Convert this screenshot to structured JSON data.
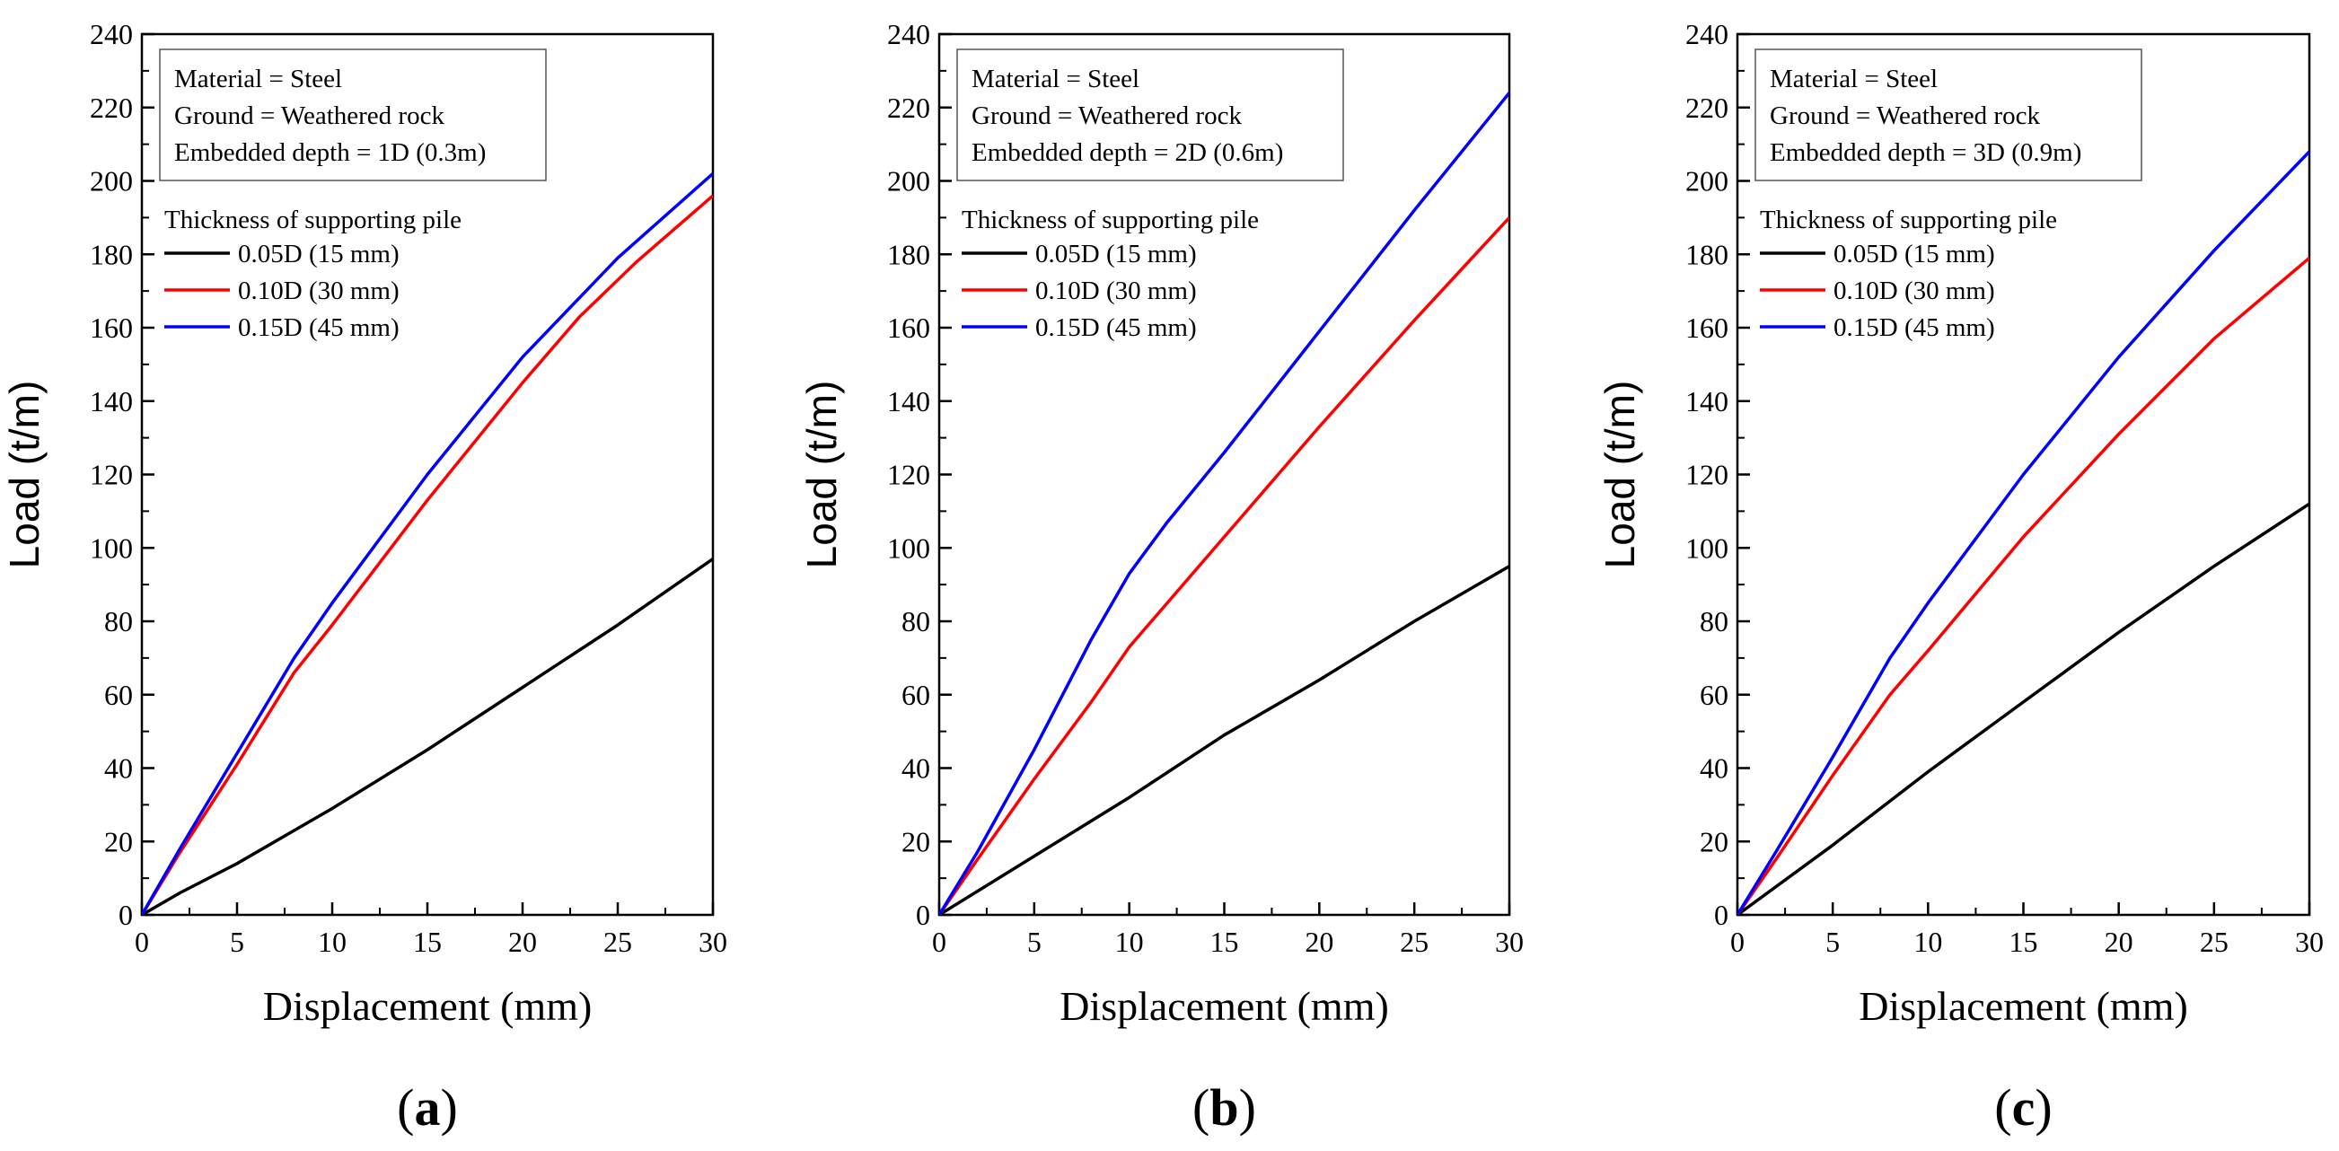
{
  "chart_data": [
    {
      "type": "line",
      "panel_label": "a",
      "xlabel": "Displacement (mm)",
      "ylabel": "Load (t/m)",
      "xlim": [
        0,
        30
      ],
      "ylim": [
        0,
        240
      ],
      "xticks": [
        0,
        5,
        10,
        15,
        20,
        25,
        30
      ],
      "yticks": [
        0,
        20,
        40,
        60,
        80,
        100,
        120,
        140,
        160,
        180,
        200,
        220,
        240
      ],
      "info": [
        "Material = Steel",
        "Ground = Weathered rock",
        "Embedded depth = 1D (0.3m)"
      ],
      "legend_title": "Thickness of supporting pile",
      "series": [
        {
          "name": "0.05D (15 mm)",
          "color": "#000000",
          "x": [
            0,
            2,
            5,
            8,
            10,
            15,
            20,
            25,
            30
          ],
          "y": [
            0,
            6,
            14,
            23,
            29,
            45,
            62,
            79,
            97
          ]
        },
        {
          "name": "0.10D (30 mm)",
          "color": "#ff0000",
          "x": [
            0,
            2,
            5,
            8,
            10,
            15,
            20,
            23,
            26,
            30
          ],
          "y": [
            0,
            17,
            41,
            66,
            79,
            113,
            145,
            163,
            178,
            196
          ]
        },
        {
          "name": "0.15D (45 mm)",
          "color": "#0000ff",
          "x": [
            0,
            2,
            5,
            8,
            10,
            15,
            20,
            25,
            30
          ],
          "y": [
            0,
            18,
            44,
            70,
            85,
            120,
            152,
            179,
            202
          ]
        }
      ]
    },
    {
      "type": "line",
      "panel_label": "b",
      "xlabel": "Displacement (mm)",
      "ylabel": "Load (t/m)",
      "xlim": [
        0,
        30
      ],
      "ylim": [
        0,
        240
      ],
      "xticks": [
        0,
        5,
        10,
        15,
        20,
        25,
        30
      ],
      "yticks": [
        0,
        20,
        40,
        60,
        80,
        100,
        120,
        140,
        160,
        180,
        200,
        220,
        240
      ],
      "info": [
        "Material = Steel",
        "Ground = Weathered rock",
        "Embedded depth = 2D (0.6m)"
      ],
      "legend_title": "Thickness of supporting pile",
      "series": [
        {
          "name": "0.05D (15 mm)",
          "color": "#000000",
          "x": [
            0,
            5,
            10,
            15,
            20,
            25,
            30
          ],
          "y": [
            0,
            16,
            32,
            49,
            64,
            80,
            95
          ]
        },
        {
          "name": "0.10D (30 mm)",
          "color": "#ff0000",
          "x": [
            0,
            2,
            5,
            8,
            10,
            12,
            15,
            20,
            25,
            30
          ],
          "y": [
            0,
            15,
            37,
            58,
            73,
            85,
            103,
            133,
            162,
            190
          ]
        },
        {
          "name": "0.15D (45 mm)",
          "color": "#0000ff",
          "x": [
            0,
            2,
            5,
            8,
            10,
            12,
            15,
            20,
            25,
            30
          ],
          "y": [
            0,
            17,
            45,
            75,
            93,
            107,
            126,
            159,
            192,
            224
          ]
        }
      ]
    },
    {
      "type": "line",
      "panel_label": "c",
      "xlabel": "Displacement (mm)",
      "ylabel": "Load (t/m)",
      "xlim": [
        0,
        30
      ],
      "ylim": [
        0,
        240
      ],
      "xticks": [
        0,
        5,
        10,
        15,
        20,
        25,
        30
      ],
      "yticks": [
        0,
        20,
        40,
        60,
        80,
        100,
        120,
        140,
        160,
        180,
        200,
        220,
        240
      ],
      "info": [
        "Material = Steel",
        "Ground = Weathered rock",
        "Embedded depth = 3D (0.9m)"
      ],
      "legend_title": "Thickness of supporting pile",
      "series": [
        {
          "name": "0.05D (15 mm)",
          "color": "#000000",
          "x": [
            0,
            5,
            10,
            15,
            20,
            25,
            30
          ],
          "y": [
            0,
            19,
            39,
            58,
            77,
            95,
            112
          ]
        },
        {
          "name": "0.10D (30 mm)",
          "color": "#ff0000",
          "x": [
            0,
            2,
            5,
            8,
            10,
            15,
            20,
            25,
            30
          ],
          "y": [
            0,
            15,
            38,
            60,
            72,
            103,
            131,
            157,
            179
          ]
        },
        {
          "name": "0.15D (45 mm)",
          "color": "#0000ff",
          "x": [
            0,
            2,
            5,
            8,
            10,
            15,
            20,
            25,
            30
          ],
          "y": [
            0,
            17,
            43,
            70,
            85,
            120,
            152,
            181,
            208
          ]
        }
      ]
    }
  ]
}
